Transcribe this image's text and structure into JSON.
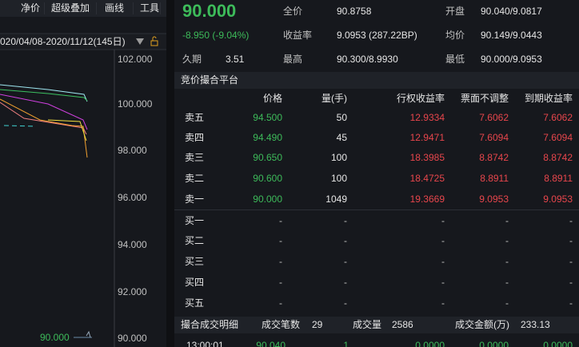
{
  "toolbar": {
    "tabs": [
      "净价",
      "超级叠加",
      "画线",
      "工具"
    ]
  },
  "chart": {
    "range": "020/04/08-2020/11/12(145日)",
    "axis_labels": [
      "102.000",
      "100.000",
      "98.000",
      "96.000",
      "94.000",
      "92.000",
      "90.000"
    ],
    "last_price": "90.000"
  },
  "quote": {
    "price": "90.000",
    "change": "-8.950 (-9.04%)",
    "fields": [
      {
        "label": "全价",
        "value": "90.8758"
      },
      {
        "label": "开盘",
        "value": "90.040/9.0817"
      },
      {
        "label": "收益率",
        "value": "9.0953 (287.22BP)"
      },
      {
        "label": "均价",
        "value": "90.149/9.0443"
      },
      {
        "label": "久期",
        "value": "3.51"
      },
      {
        "label": "最高",
        "value": "90.300/8.9930"
      },
      {
        "label": "最低",
        "value": "90.000/9.0953"
      }
    ]
  },
  "order_book": {
    "title": "竞价撮合平台",
    "columns": [
      "价格",
      "量(手)",
      "行权收益率",
      "票面不调整",
      "到期收益率"
    ],
    "asks": [
      {
        "label": "卖五",
        "cells": [
          "94.500",
          "50",
          "12.9334",
          "7.6062",
          "7.6062"
        ]
      },
      {
        "label": "卖四",
        "cells": [
          "94.490",
          "45",
          "12.9471",
          "7.6094",
          "7.6094"
        ]
      },
      {
        "label": "卖三",
        "cells": [
          "90.650",
          "100",
          "18.3985",
          "8.8742",
          "8.8742"
        ]
      },
      {
        "label": "卖二",
        "cells": [
          "90.600",
          "100",
          "18.4725",
          "8.8911",
          "8.8911"
        ]
      },
      {
        "label": "卖一",
        "cells": [
          "90.000",
          "1049",
          "19.3669",
          "9.0953",
          "9.0953"
        ]
      }
    ],
    "bids": [
      {
        "label": "买一",
        "cells": [
          "-",
          "-",
          "-",
          "-",
          "-"
        ]
      },
      {
        "label": "买二",
        "cells": [
          "-",
          "-",
          "-",
          "-",
          "-"
        ]
      },
      {
        "label": "买三",
        "cells": [
          "-",
          "-",
          "-",
          "-",
          "-"
        ]
      },
      {
        "label": "买四",
        "cells": [
          "-",
          "-",
          "-",
          "-",
          "-"
        ]
      },
      {
        "label": "买五",
        "cells": [
          "-",
          "-",
          "-",
          "-",
          "-"
        ]
      }
    ]
  },
  "trades": {
    "title": "撮合成交明细",
    "summary": [
      {
        "label": "成交笔数",
        "value": "29"
      },
      {
        "label": "成交量",
        "value": "2586"
      },
      {
        "label": "成交金额(万)",
        "value": "233.13"
      }
    ],
    "rows": [
      [
        "13:00:01",
        "90.040",
        "1",
        "0.0000",
        "0.0000",
        "0.0000"
      ]
    ]
  }
}
